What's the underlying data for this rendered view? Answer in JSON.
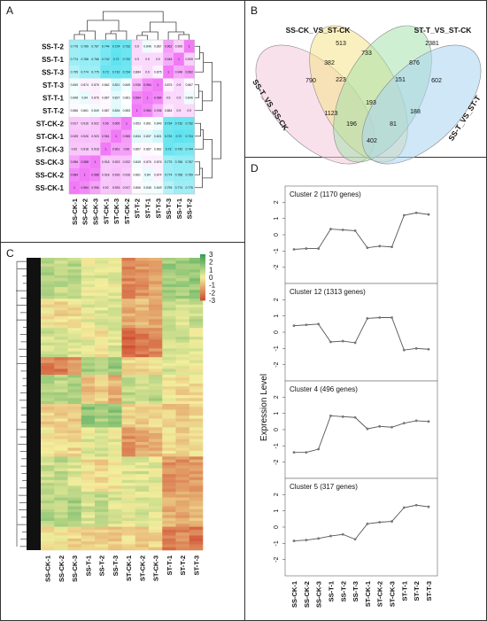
{
  "panels": {
    "a": "A",
    "b": "B",
    "c": "C",
    "d": "D"
  },
  "colors": {
    "low": "#5fe3f0",
    "mid": "#ffffff",
    "high": "#f17af7",
    "heat_low": "#d04a30",
    "heat_mid": "#f3ee9c",
    "heat_high": "#2f9d52",
    "line": "#555555",
    "venn": [
      "#f4c8dc",
      "#f5e280",
      "#9fe0a8",
      "#a9d3f2"
    ]
  },
  "chart_data": [
    {
      "type": "heatmap",
      "panel": "A",
      "rows": [
        "SS-T-2",
        "SS-T-1",
        "SS-T-3",
        "ST-T-3",
        "ST-T-1",
        "ST-T-2",
        "ST-CK-2",
        "ST-CK-1",
        "ST-CK-3",
        "SS-CK-3",
        "SS-CK-2",
        "SS-CK-1"
      ],
      "columns": [
        "SS-CK-1",
        "SS-CK-2",
        "SS-CK-3",
        "ST-CK-1",
        "ST-CK-3",
        "ST-CK-2",
        "ST-T-2",
        "ST-T-1",
        "ST-T-3",
        "SS-T-3",
        "SS-T-1",
        "SS-T-2"
      ],
      "values": [
        [
          "0.776",
          "0.769",
          "0.767",
          "0.744",
          "0.724",
          "0.732",
          "0.9",
          "0.846",
          "0.867",
          "0.962",
          "0.909",
          "1"
        ],
        [
          "0.774",
          "0.768",
          "0.766",
          "0.742",
          "0.72",
          "0.732",
          "0.9",
          "0.9",
          "0.9",
          "0.948",
          "1",
          "0.909"
        ],
        [
          "0.795",
          "0.774",
          "0.775",
          "0.73",
          "0.732",
          "0.734",
          "0.884",
          "0.9",
          "0.875",
          "1",
          "0.948",
          "0.962"
        ],
        [
          "0.849",
          "0.874",
          "0.876",
          "0.862",
          "0.821",
          "0.849",
          "0.936",
          "0.984",
          "1",
          "0.875",
          "0.9",
          "0.867"
        ],
        [
          "0.848",
          "0.84",
          "0.876",
          "0.867",
          "0.837",
          "0.861",
          "0.984",
          "1",
          "0.984",
          "0.9",
          "0.9",
          "0.846"
        ],
        [
          "0.866",
          "0.861",
          "0.849",
          "0.867",
          "0.834",
          "0.853",
          "1",
          "0.984",
          "0.936",
          "0.884",
          "0.9",
          "0.9"
        ],
        [
          "0.917",
          "0.916",
          "0.922",
          "0.96",
          "0.965",
          "1",
          "0.853",
          "0.861",
          "0.849",
          "0.734",
          "0.732",
          "0.732"
        ],
        [
          "0.925",
          "0.926",
          "0.923",
          "0.961",
          "1",
          "0.965",
          "0.834",
          "0.837",
          "0.821",
          "0.732",
          "0.72",
          "0.724"
        ],
        [
          "0.92",
          "0.918",
          "0.918",
          "1",
          "0.961",
          "0.96",
          "0.867",
          "0.867",
          "0.862",
          "0.73",
          "0.742",
          "0.744"
        ],
        [
          "0.956",
          "0.988",
          "1",
          "0.918",
          "0.923",
          "0.922",
          "0.849",
          "0.876",
          "0.876",
          "0.775",
          "0.766",
          "0.767"
        ],
        [
          "0.984",
          "1",
          "0.988",
          "0.918",
          "0.926",
          "0.916",
          "0.861",
          "0.84",
          "0.874",
          "0.774",
          "0.768",
          "0.769"
        ],
        [
          "1",
          "0.984",
          "0.956",
          "0.92",
          "0.925",
          "0.917",
          "0.866",
          "0.848",
          "0.849",
          "0.795",
          "0.774",
          "0.776"
        ]
      ]
    },
    {
      "type": "venn",
      "panel": "B",
      "sets": [
        "SS-T_VS_SS-CK",
        "SS-CK_VS_ST-CK",
        "ST-T_VS_ST-CK",
        "SS-T_VS_ST-T"
      ],
      "region_counts": [
        "513",
        "2381",
        "382",
        "733",
        "876",
        "790",
        "223",
        "151",
        "602",
        "193",
        "1123",
        "188",
        "81",
        "196",
        "402"
      ]
    },
    {
      "type": "heatmap",
      "panel": "C",
      "columns": [
        "SS-CK-1",
        "SS-CK-2",
        "SS-CK-3",
        "SS-T-1",
        "SS-T-2",
        "SS-T-3",
        "ST-CK-1",
        "ST-CK-2",
        "ST-CK-3",
        "ST-T-1",
        "ST-T-2",
        "ST-T-3"
      ],
      "scale_ticks": [
        "3",
        "2",
        "1",
        "0",
        "-1",
        "-2",
        "-3"
      ],
      "zlim": [
        -3,
        3
      ],
      "blocks": [
        {
          "rows": 14,
          "values": [
            1.0,
            0.8,
            0.9,
            0.1,
            0.3,
            0.2,
            -1.8,
            -1.6,
            -1.2,
            1.3,
            1.2,
            1.4
          ]
        },
        {
          "rows": 10,
          "values": [
            -0.2,
            -0.4,
            -0.3,
            0.2,
            0.3,
            0.5,
            -1.2,
            -0.9,
            -1.3,
            0.6,
            0.4,
            0.7
          ]
        },
        {
          "rows": 10,
          "values": [
            0.6,
            0.7,
            0.4,
            0.1,
            -0.2,
            0.3,
            -2.5,
            -2.2,
            -1.8,
            0.5,
            0.6,
            0.3
          ]
        },
        {
          "rows": 6,
          "values": [
            -2.0,
            -2.1,
            -1.6,
            1.2,
            1.0,
            1.4,
            -0.3,
            -0.5,
            -0.2,
            0.4,
            0.1,
            0.2
          ]
        },
        {
          "rows": 10,
          "values": [
            0.9,
            0.9,
            1.1,
            -0.9,
            -0.6,
            -1.1,
            0.8,
            0.6,
            0.9,
            -0.2,
            -0.4,
            -0.3
          ]
        },
        {
          "rows": 8,
          "values": [
            -0.6,
            -0.5,
            -0.7,
            1.6,
            1.2,
            1.5,
            -0.4,
            -0.6,
            -0.5,
            -0.6,
            -0.7,
            -0.4
          ]
        },
        {
          "rows": 10,
          "values": [
            -0.2,
            -0.4,
            -0.5,
            0.3,
            0.4,
            0.2,
            -1.6,
            -1.3,
            -1.1,
            -0.3,
            -0.5,
            -0.2
          ]
        },
        {
          "rows": 12,
          "values": [
            0.6,
            0.8,
            0.5,
            -0.3,
            -0.4,
            -0.2,
            0.3,
            0.4,
            0.2,
            -1.6,
            -1.8,
            -1.5
          ]
        },
        {
          "rows": 12,
          "values": [
            1.0,
            0.9,
            1.1,
            0.5,
            0.7,
            0.4,
            0.2,
            0.4,
            0.3,
            -1.1,
            -1.3,
            -1.0
          ]
        },
        {
          "rows": 8,
          "values": [
            -0.3,
            -0.1,
            -0.4,
            -0.6,
            -0.4,
            -0.7,
            -0.3,
            -0.5,
            -0.4,
            -2.0,
            -1.8,
            -2.2
          ]
        }
      ]
    },
    {
      "type": "line",
      "panel": "D",
      "x": [
        "SS-CK-1",
        "SS-CK-2",
        "SS-CK-3",
        "SS-T-1",
        "SS-T-2",
        "SS-T-3",
        "ST-CK-1",
        "ST-CK-2",
        "ST-CK-3",
        "ST-T-1",
        "ST-T-2",
        "ST-T-3"
      ],
      "ylabel": "Expression Level",
      "ylim": [
        -3,
        3
      ],
      "yticks": [
        -2,
        -1,
        0,
        1,
        2
      ],
      "series": [
        {
          "name": "Cluster 2 (1170 genes)",
          "values": [
            -0.9,
            -0.85,
            -0.85,
            0.35,
            0.3,
            0.25,
            -0.8,
            -0.7,
            -0.75,
            1.2,
            1.35,
            1.25
          ]
        },
        {
          "name": "Cluster 12 (1313 genes)",
          "values": [
            0.4,
            0.45,
            0.5,
            -0.6,
            -0.55,
            -0.65,
            0.85,
            0.9,
            0.9,
            -1.1,
            -1.0,
            -1.05
          ]
        },
        {
          "name": "Cluster 4 (496 genes)",
          "values": [
            -1.4,
            -1.4,
            -1.2,
            0.85,
            0.8,
            0.75,
            0.05,
            0.2,
            0.15,
            0.4,
            0.55,
            0.5
          ]
        },
        {
          "name": "Cluster 5 (317 genes)",
          "values": [
            -0.85,
            -0.8,
            -0.7,
            -0.55,
            -0.45,
            -0.75,
            0.2,
            0.3,
            0.35,
            1.2,
            1.35,
            1.25
          ]
        }
      ]
    }
  ]
}
